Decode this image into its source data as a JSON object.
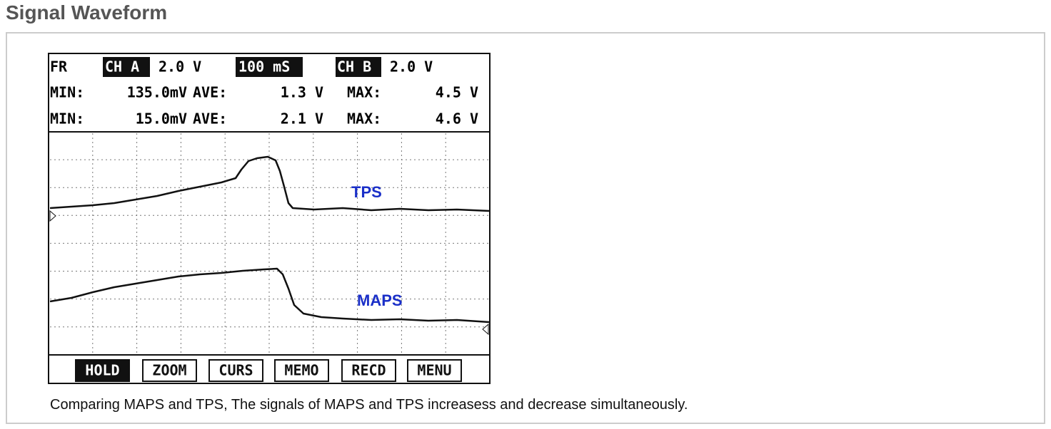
{
  "title": "Signal Waveform",
  "scope": {
    "header": [
      "FR",
      "CH A",
      "2.0 V",
      "100 mS",
      "CH B",
      "2.0 V"
    ],
    "rows": [
      [
        "MIN:",
        "135.0mV",
        "AVE:",
        "1.3 V",
        "MAX:",
        "4.5 V"
      ],
      [
        "MIN:",
        "15.0mV",
        "AVE:",
        "2.1 V",
        "MAX:",
        "4.6 V"
      ]
    ],
    "traces": [
      "TPS",
      "MAPS"
    ],
    "buttons": [
      "HOLD",
      "ZOOM",
      "CURS",
      "MEMO",
      "RECD",
      "MENU"
    ]
  },
  "caption": "Comparing MAPS and TPS, The signals of MAPS and TPS increasess and decrease simultaneously."
}
